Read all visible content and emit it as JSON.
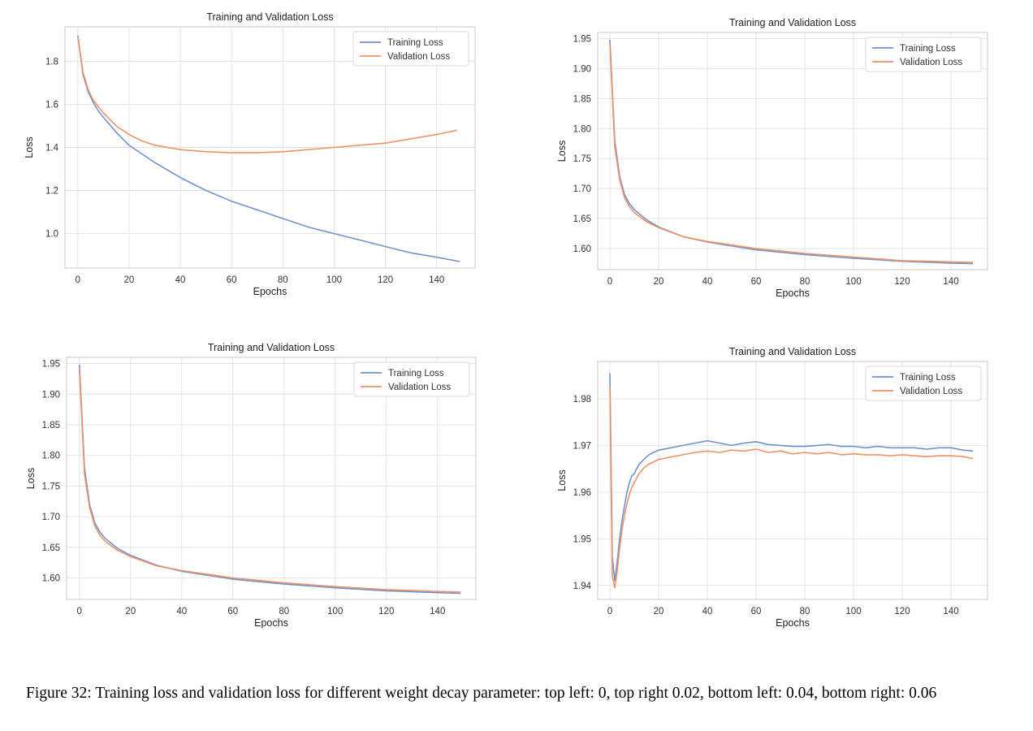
{
  "caption": "Figure 32: Training loss and validation loss for different weight decay parameter: top left: 0, top right 0.02, bottom left: 0.04, bottom right: 0.06",
  "colors": {
    "training": "#6f93cf",
    "validation": "#ef9266",
    "grid": "#e3e3e3",
    "axes": "#c8c8c8"
  },
  "chart_data": [
    {
      "type": "line",
      "title": "Training and Validation Loss",
      "xlabel": "Epochs",
      "ylabel": "Loss",
      "xticks": [
        0,
        20,
        40,
        60,
        80,
        100,
        120,
        140
      ],
      "yticks": [
        1.0,
        1.2,
        1.4,
        1.6,
        1.8
      ],
      "ytick_labels": [
        "1.0",
        "1.2",
        "1.4",
        "1.6",
        "1.8"
      ],
      "xlim": [
        -5,
        155
      ],
      "ylim": [
        0.84,
        1.96
      ],
      "grid": true,
      "legend": "top-right",
      "series": [
        {
          "name": "Training Loss",
          "color": "#6f93cf",
          "x": [
            0,
            2,
            4,
            6,
            8,
            10,
            15,
            20,
            25,
            30,
            40,
            50,
            60,
            70,
            80,
            90,
            100,
            110,
            120,
            130,
            140,
            149
          ],
          "y": [
            1.92,
            1.74,
            1.66,
            1.61,
            1.57,
            1.54,
            1.47,
            1.41,
            1.37,
            1.33,
            1.26,
            1.2,
            1.15,
            1.11,
            1.07,
            1.03,
            1.0,
            0.97,
            0.94,
            0.91,
            0.89,
            0.87
          ]
        },
        {
          "name": "Validation Loss",
          "color": "#ef9266",
          "x": [
            0,
            2,
            4,
            6,
            8,
            10,
            15,
            20,
            25,
            30,
            40,
            50,
            60,
            70,
            80,
            90,
            100,
            110,
            120,
            130,
            140,
            148
          ],
          "y": [
            1.92,
            1.75,
            1.67,
            1.62,
            1.59,
            1.56,
            1.5,
            1.46,
            1.43,
            1.41,
            1.39,
            1.38,
            1.375,
            1.375,
            1.38,
            1.39,
            1.4,
            1.41,
            1.42,
            1.44,
            1.46,
            1.48
          ]
        }
      ]
    },
    {
      "type": "line",
      "title": "Training and Validation Loss",
      "xlabel": "Epochs",
      "ylabel": "Loss",
      "xticks": [
        0,
        20,
        40,
        60,
        80,
        100,
        120,
        140
      ],
      "yticks": [
        1.6,
        1.65,
        1.7,
        1.75,
        1.8,
        1.85,
        1.9,
        1.95
      ],
      "ytick_labels": [
        "1.60",
        "1.65",
        "1.70",
        "1.75",
        "1.80",
        "1.85",
        "1.90",
        "1.95"
      ],
      "xlim": [
        -5,
        155
      ],
      "ylim": [
        1.565,
        1.96
      ],
      "grid": true,
      "legend": "top-right",
      "series": [
        {
          "name": "Training Loss",
          "color": "#6f93cf",
          "x": [
            0,
            2,
            4,
            6,
            8,
            10,
            15,
            20,
            30,
            40,
            60,
            80,
            100,
            120,
            140,
            149
          ],
          "y": [
            1.948,
            1.78,
            1.72,
            1.69,
            1.675,
            1.665,
            1.648,
            1.636,
            1.62,
            1.611,
            1.598,
            1.59,
            1.584,
            1.579,
            1.576,
            1.575
          ]
        },
        {
          "name": "Validation Loss",
          "color": "#ef9266",
          "x": [
            0,
            2,
            4,
            6,
            8,
            10,
            15,
            20,
            30,
            40,
            60,
            80,
            100,
            120,
            140,
            149
          ],
          "y": [
            1.94,
            1.77,
            1.715,
            1.685,
            1.67,
            1.66,
            1.645,
            1.635,
            1.62,
            1.612,
            1.6,
            1.592,
            1.586,
            1.58,
            1.578,
            1.577
          ]
        }
      ]
    },
    {
      "type": "line",
      "title": "Training and Validation Loss",
      "xlabel": "Epochs",
      "ylabel": "Loss",
      "xticks": [
        0,
        20,
        40,
        60,
        80,
        100,
        120,
        140
      ],
      "yticks": [
        1.6,
        1.65,
        1.7,
        1.75,
        1.8,
        1.85,
        1.9,
        1.95
      ],
      "ytick_labels": [
        "1.60",
        "1.65",
        "1.70",
        "1.75",
        "1.80",
        "1.85",
        "1.90",
        "1.95"
      ],
      "xlim": [
        -5,
        155
      ],
      "ylim": [
        1.565,
        1.96
      ],
      "grid": true,
      "legend": "top-right",
      "series": [
        {
          "name": "Training Loss",
          "color": "#6f93cf",
          "x": [
            0,
            2,
            4,
            6,
            8,
            10,
            15,
            20,
            30,
            40,
            60,
            80,
            100,
            120,
            140,
            149
          ],
          "y": [
            1.948,
            1.78,
            1.72,
            1.69,
            1.675,
            1.665,
            1.648,
            1.637,
            1.621,
            1.611,
            1.598,
            1.59,
            1.584,
            1.579,
            1.576,
            1.575
          ]
        },
        {
          "name": "Validation Loss",
          "color": "#ef9266",
          "x": [
            0,
            2,
            4,
            6,
            8,
            10,
            15,
            20,
            30,
            40,
            60,
            80,
            100,
            120,
            140,
            149
          ],
          "y": [
            1.94,
            1.77,
            1.715,
            1.685,
            1.67,
            1.66,
            1.645,
            1.635,
            1.62,
            1.612,
            1.6,
            1.592,
            1.586,
            1.581,
            1.578,
            1.577
          ]
        }
      ]
    },
    {
      "type": "line",
      "title": "Training and Validation Loss",
      "xlabel": "Epochs",
      "ylabel": "Loss",
      "xticks": [
        0,
        20,
        40,
        60,
        80,
        100,
        120,
        140
      ],
      "yticks": [
        1.94,
        1.95,
        1.96,
        1.97,
        1.98
      ],
      "ytick_labels": [
        "1.94",
        "1.95",
        "1.96",
        "1.97",
        "1.98"
      ],
      "xlim": [
        -5,
        155
      ],
      "ylim": [
        1.937,
        1.988
      ],
      "grid": true,
      "legend": "top-right",
      "series": [
        {
          "name": "Training Loss",
          "color": "#6f93cf",
          "x": [
            0,
            1,
            2,
            3,
            4,
            5,
            6,
            7,
            8,
            9,
            10,
            12,
            14,
            16,
            18,
            20,
            25,
            30,
            35,
            40,
            45,
            50,
            55,
            60,
            65,
            70,
            75,
            80,
            85,
            90,
            95,
            100,
            105,
            110,
            115,
            120,
            125,
            130,
            135,
            140,
            145,
            149
          ],
          "y": [
            1.9855,
            1.946,
            1.941,
            1.945,
            1.95,
            1.954,
            1.957,
            1.96,
            1.962,
            1.9635,
            1.964,
            1.966,
            1.967,
            1.968,
            1.9685,
            1.969,
            1.9695,
            1.97,
            1.9705,
            1.971,
            1.9705,
            1.97,
            1.9705,
            1.9708,
            1.9702,
            1.97,
            1.9698,
            1.9698,
            1.97,
            1.9702,
            1.9698,
            1.9698,
            1.9695,
            1.9698,
            1.9695,
            1.9695,
            1.9695,
            1.9692,
            1.9695,
            1.9695,
            1.969,
            1.9688
          ]
        },
        {
          "name": "Validation Loss",
          "color": "#ef9266",
          "x": [
            0,
            1,
            2,
            3,
            4,
            5,
            6,
            7,
            8,
            9,
            10,
            12,
            14,
            16,
            18,
            20,
            25,
            30,
            35,
            40,
            45,
            50,
            55,
            60,
            65,
            70,
            75,
            80,
            85,
            90,
            95,
            100,
            105,
            110,
            115,
            120,
            125,
            130,
            135,
            140,
            145,
            149
          ],
          "y": [
            1.9825,
            1.942,
            1.9395,
            1.943,
            1.948,
            1.952,
            1.955,
            1.9575,
            1.9595,
            1.961,
            1.962,
            1.964,
            1.9652,
            1.966,
            1.9665,
            1.967,
            1.9675,
            1.968,
            1.9685,
            1.9688,
            1.9685,
            1.969,
            1.9688,
            1.9692,
            1.9685,
            1.9688,
            1.9682,
            1.9685,
            1.9682,
            1.9685,
            1.968,
            1.9682,
            1.968,
            1.968,
            1.9678,
            1.968,
            1.9678,
            1.9676,
            1.9678,
            1.9678,
            1.9676,
            1.9672
          ]
        }
      ]
    }
  ]
}
